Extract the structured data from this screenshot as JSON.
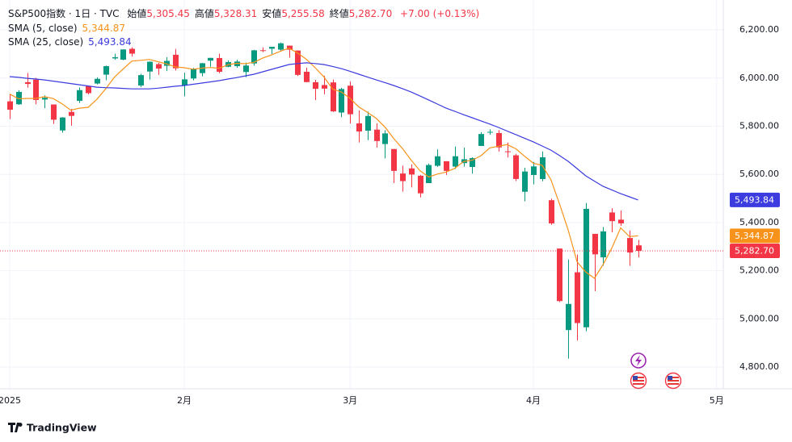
{
  "chart_data": {
    "type": "candlestick",
    "title": "S&P500指数 · 1日 · TVC",
    "info": [
      {
        "label": "始値",
        "value": "5,305.45"
      },
      {
        "label": "高値",
        "value": "5,328.31"
      },
      {
        "label": "安値",
        "value": "5,255.58"
      },
      {
        "label": "終値",
        "value": "5,282.70"
      }
    ],
    "change": "+7.00 (+0.13%)",
    "series": [
      {
        "name": "S&P500指数",
        "up_color": "#089981",
        "down_color": "#f23645",
        "open": [
          5903.26,
          5891.07,
          5982.81,
          5993.26,
          5910.66,
          5890.28,
          5782.34,
          5859.4,
          5905.21,
          5967.02,
          5977.28,
          6014.12,
          6081.39,
          6076.32,
          6121.43,
          5969.04,
          6026.97,
          6057.7,
          6050.75,
          6096.79,
          5969.65,
          5998.14,
          6020.45,
          6072.22,
          6083.13,
          6046.81,
          6049.32,
          6025.08,
          6060.59,
          6115.52,
          6121.6,
          6117.76,
          6134.5,
          6114.1,
          6026.16,
          5982.73,
          5970.87,
          5981.88,
          5856.74,
          5968.33,
          5811.98,
          5781.48,
          5785.87,
          5726.01,
          5705.37,
          5603.65,
          5624.84,
          5594.45,
          5563.85,
          5635.6,
          5654.53,
          5632.37,
          5646.92,
          5630.73,
          5718.08,
          5775.14,
          5771.66,
          5695.64,
          5679.24,
          5527.91,
          5597.53,
          5580.76,
          5492.74,
          5292.14,
          4953.79,
          5193.57,
          4965.28,
          5353.15,
          5255.56,
          5441.96,
          5411.99,
          5335.75,
          5305.45
        ],
        "high": [
          5935.09,
          5949.34,
          6021.04,
          6000.68,
          5927.89,
          5890.28,
          5838.18,
          5871.92,
          5960.61,
          5968.44,
          6002.78,
          6051.51,
          6100.81,
          6118.73,
          6128.18,
          6017.17,
          6069.09,
          6062.83,
          6086.64,
          6120.91,
          6022.13,
          6042.48,
          6062.86,
          6084.03,
          6101.28,
          6073.38,
          6076.28,
          6064.17,
          6116.91,
          6127.47,
          6129.63,
          6147.43,
          6134.5,
          6114.82,
          6043.65,
          5992.65,
          6009.82,
          5993.69,
          5959.4,
          5986.09,
          5865.08,
          5860.59,
          5812.08,
          5783.01,
          5705.37,
          5636.3,
          5642.19,
          5597.78,
          5645.27,
          5703.52,
          5654.53,
          5715.33,
          5711.15,
          5670.84,
          5775.15,
          5786.95,
          5783.62,
          5732.28,
          5685.89,
          5627.56,
          5651.94,
          5695.31,
          5499.53,
          5292.14,
          5246.57,
          5267.47,
          5481.34,
          5353.15,
          5381.46,
          5459.46,
          5450.41,
          5367.24,
          5328.31
        ],
        "low": [
          5829.53,
          5888.66,
          5960.01,
          5890.68,
          5874.78,
          5809.38,
          5773.31,
          5801.99,
          5896.68,
          5932.4,
          5973.65,
          5990.65,
          6076.32,
          6074.32,
          6088.74,
          5962.92,
          5993.95,
          6012.96,
          6028.97,
          6030.93,
          5923.93,
          5990.55,
          6007.06,
          6046.83,
          6019.96,
          6044.84,
          6042.34,
          6003.98,
          6051.58,
          6107.62,
          6099.51,
          6111.15,
          6084.59,
          6008.56,
          5982.05,
          5908.49,
          5932.69,
          5858.78,
          5837.66,
          5810.91,
          5732.59,
          5742.35,
          5711.64,
          5666.29,
          5564.02,
          5528.41,
          5546.09,
          5504.65,
          5563.85,
          5631.12,
          5597.76,
          5622.71,
          5632.52,
          5603.1,
          5718.08,
          5764.77,
          5695.06,
          5670.37,
          5572.42,
          5488.73,
          5558.52,
          5571.48,
          5390.83,
          5069.9,
          4835.04,
          4910.42,
          4949.06,
          5115.27,
          5220.77,
          5359.01,
          5386.44,
          5220.79,
          5255.58
        ],
        "close": [
          5868.55,
          5942.47,
          5975.38,
          5909.03,
          5918.25,
          5827.04,
          5836.22,
          5842.91,
          5949.91,
          5937.34,
          5996.66,
          6049.24,
          6086.37,
          6118.71,
          6101.24,
          6012.28,
          6067.7,
          6039.31,
          6071.17,
          6040.53,
          5994.57,
          6037.88,
          6061.48,
          6083.57,
          6025.99,
          6066.44,
          6068.5,
          6051.97,
          6115.07,
          6114.63,
          6129.58,
          6144.15,
          6117.52,
          6013.13,
          5983.25,
          5955.25,
          5956.06,
          5861.57,
          5954.5,
          5849.72,
          5778.15,
          5842.63,
          5738.52,
          5770.2,
          5614.56,
          5572.07,
          5599.3,
          5521.52,
          5638.94,
          5675.12,
          5614.66,
          5675.29,
          5662.89,
          5667.56,
          5767.57,
          5776.65,
          5712.2,
          5693.31,
          5580.94,
          5611.85,
          5633.07,
          5670.97,
          5396.52,
          5074.08,
          5062.25,
          4982.77,
          5456.9,
          5268.05,
          5363.36,
          5405.97,
          5396.63,
          5275.7,
          5282.7
        ]
      }
    ],
    "indicators": [
      {
        "name": "SMA (5, close)",
        "color": "#f7931a",
        "value_label": "5,344.87",
        "values": [
          5933.1,
          5914.1,
          5915.0,
          5915.4,
          5922.7,
          5914.4,
          5893.2,
          5866.7,
          5874.9,
          5878.7,
          5912.6,
          5955.2,
          6003.9,
          6037.7,
          6070.4,
          6073.6,
          6077.3,
          6067.8,
          6058.3,
          6046.2,
          6042.7,
          6036.7,
          6041.1,
          6043.6,
          6040.7,
          6055.1,
          6061.2,
          6059.3,
          6065.6,
          6083.3,
          6096.0,
          6111.1,
          6124.2,
          6103.8,
          6077.5,
          6042.7,
          6005.0,
          5953.9,
          5942.1,
          5915.4,
          5880.0,
          5857.3,
          5832.7,
          5795.8,
          5748.8,
          5707.6,
          5658.9,
          5615.5,
          5589.3,
          5601.4,
          5609.9,
          5625.1,
          5653.4,
          5659.1,
          5677.6,
          5710.0,
          5717.4,
          5723.5,
          5706.1,
          5675.0,
          5646.3,
          5638.0,
          5578.7,
          5477.3,
          5367.4,
          5237.3,
          5194.5,
          5168.8,
          5226.7,
          5295.4,
          5378.2,
          5341.9,
          5344.87
        ]
      },
      {
        "name": "SMA (25, close)",
        "color": "#3b3bdf",
        "value_label": "5,493.84",
        "values": [
          6006,
          6003,
          5999,
          5996,
          5992,
          5987,
          5982,
          5977,
          5972,
          5967,
          5962,
          5960,
          5959,
          5957,
          5955,
          5955,
          5955,
          5958,
          5962,
          5966,
          5969,
          5974,
          5979,
          5984,
          5989,
          5996,
          6002,
          6009,
          6016,
          6026,
          6036,
          6046,
          6056,
          6060,
          6063,
          6060,
          6056,
          6048,
          6039,
          6028,
          6016,
          6004,
          5992,
          5981,
          5969,
          5956,
          5942,
          5926,
          5909,
          5892,
          5875,
          5862,
          5848,
          5835,
          5822,
          5809,
          5795,
          5780,
          5765,
          5750,
          5735,
          5718,
          5701,
          5678,
          5654,
          5624,
          5594,
          5572,
          5550,
          5535,
          5520,
          5507,
          5493.84
        ]
      }
    ],
    "ylim": [
      4710,
      6324
    ],
    "yticks": [
      {
        "value": 4800,
        "label": "4,800.00"
      },
      {
        "value": 5000,
        "label": "5,000.00"
      },
      {
        "value": 5200,
        "label": "5,200.00"
      },
      {
        "value": 5400,
        "label": "5,400.00"
      },
      {
        "value": 5600,
        "label": "5,600.00"
      },
      {
        "value": 5800,
        "label": "5,800.00"
      },
      {
        "value": 6000,
        "label": "6,000.00"
      },
      {
        "value": 6200,
        "label": "6,200.00"
      }
    ],
    "xlim": [
      -1.11,
      81.76
    ],
    "xticks": [
      {
        "value": 0,
        "label": "2025"
      },
      {
        "value": 20,
        "label": "2月"
      },
      {
        "value": 39,
        "label": "3月"
      },
      {
        "value": 60,
        "label": "4月"
      },
      {
        "value": 81,
        "label": "5月"
      }
    ],
    "grid": true,
    "branding": "TradingView"
  }
}
